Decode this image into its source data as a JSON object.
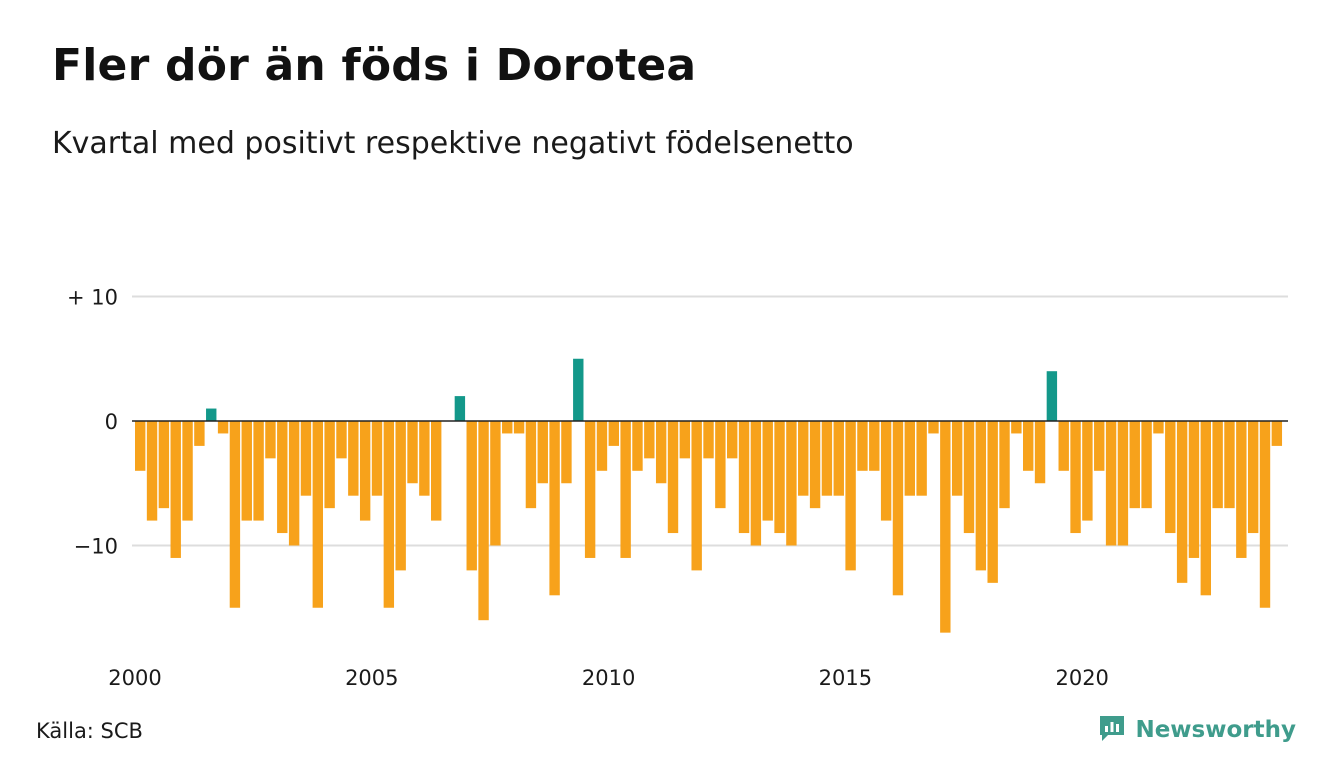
{
  "title": "Fler dör än föds i Dorotea",
  "subtitle": "Kvartal med positivt respektive negativt födelsenetto",
  "source": "Källa: SCB",
  "brand": {
    "name": "Newsworthy",
    "icon": "newsworthy-logo-icon"
  },
  "colors": {
    "positive": "#13988a",
    "negative": "#f7a21b",
    "gridline": "#dddddd",
    "zeroline": "#222222"
  },
  "chart_data": {
    "type": "bar",
    "x_start": "2000 Q1",
    "frequency": "quarterly",
    "xticks": [
      "2000",
      "2005",
      "2010",
      "2015",
      "2020"
    ],
    "yticks": [
      "+ 10",
      "0",
      "−10"
    ],
    "ylim": [
      -18,
      10
    ],
    "grid": true,
    "values": [
      -4,
      -8,
      -7,
      -11,
      -8,
      -2,
      1,
      -1,
      -15,
      -8,
      -8,
      -3,
      -9,
      -10,
      -6,
      -15,
      -7,
      -3,
      -6,
      -8,
      -6,
      -15,
      -12,
      -5,
      -6,
      -8,
      0,
      2,
      -12,
      -16,
      -10,
      -1,
      -1,
      -7,
      -5,
      -14,
      -5,
      5,
      -11,
      -4,
      -2,
      -11,
      -4,
      -3,
      -5,
      -9,
      -3,
      -12,
      -3,
      -7,
      -3,
      -9,
      -10,
      -8,
      -9,
      -10,
      -6,
      -7,
      -6,
      -6,
      -12,
      -4,
      -4,
      -8,
      -14,
      -6,
      -6,
      -1,
      -17,
      -6,
      -9,
      -12,
      -13,
      -7,
      -1,
      -4,
      -5,
      4,
      -4,
      -9,
      -8,
      -4,
      -10,
      -10,
      -7,
      -7,
      -1,
      -9,
      -13,
      -11,
      -14,
      -7,
      -7,
      -11,
      -9,
      -15,
      -2
    ]
  }
}
